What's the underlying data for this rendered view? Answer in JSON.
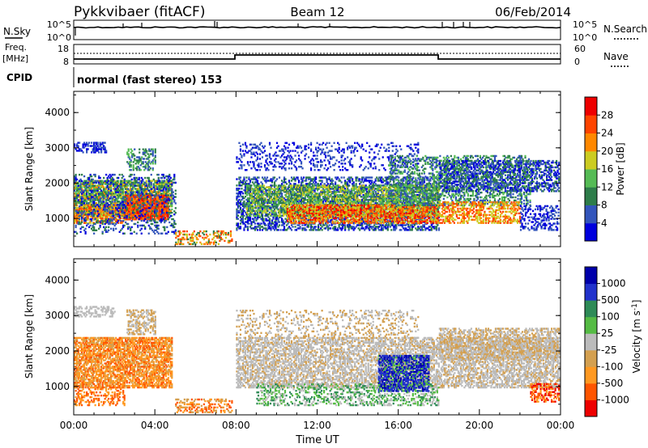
{
  "header": {
    "station": "Pykkvibaer (fitACF)",
    "beam": "Beam 12",
    "date": "06/Feb/2014"
  },
  "sky_panel": {
    "left_label": "N.Sky",
    "right_label": "N.Search",
    "left_ticks": [
      "10^5",
      "10^0"
    ],
    "right_ticks": [
      "10^5",
      "10^0"
    ]
  },
  "freq_panel": {
    "left_label_1": "Freq.",
    "left_label_2": "[MHz]",
    "right_label": "Nave",
    "left_ticks": [
      "18",
      "8"
    ],
    "right_ticks": [
      "60",
      "0"
    ]
  },
  "cpid": {
    "label": "CPID",
    "text": "normal (fast stereo) 153"
  },
  "colors": {
    "power_scale": [
      "#0000dd",
      "#3355bb",
      "#2e7d4a",
      "#55bb55",
      "#cccc22",
      "#ff8800",
      "#ff4400",
      "#ee0000"
    ],
    "velocity_scale": [
      "#ee0000",
      "#ff5500",
      "#ff9922",
      "#d4a050",
      "#bbbbbb",
      "#55bb44",
      "#2e8b57",
      "#2233cc",
      "#0000aa"
    ]
  },
  "chart_data": [
    {
      "type": "heatmap",
      "title": "",
      "ylabel": "Slant Range [km]",
      "xlabel": "",
      "ylim": [
        200,
        4600
      ],
      "y_ticks": [
        "1000",
        "2000",
        "3000",
        "4000"
      ],
      "x_ticks": [
        "00:00",
        "04:00",
        "08:00",
        "12:00",
        "16:00",
        "20:00",
        "00:00"
      ],
      "colorbar": {
        "label": "Power [dB]",
        "ticks": [
          "4",
          "8",
          "12",
          "16",
          "20",
          "24",
          "28"
        ]
      },
      "regions": [
        {
          "t0": 0.0,
          "t1": 4.8,
          "r0": 700,
          "r1": 2200,
          "value": "16-28 dB"
        },
        {
          "t0": 2.5,
          "t1": 4.0,
          "r0": 2500,
          "r1": 3100,
          "value": "8-16 dB"
        },
        {
          "t0": 5.0,
          "t1": 7.8,
          "r0": 300,
          "r1": 700,
          "value": "8-20 dB"
        },
        {
          "t0": 8.0,
          "t1": 18.0,
          "r0": 600,
          "r1": 2400,
          "value": "12-28 dB"
        },
        {
          "t0": 18.0,
          "t1": 23.9,
          "r0": 900,
          "r1": 2800,
          "value": "8-24 dB"
        }
      ]
    },
    {
      "type": "heatmap",
      "title": "",
      "ylabel": "Slant Range [km]",
      "xlabel": "Time UT",
      "ylim": [
        200,
        4600
      ],
      "y_ticks": [
        "1000",
        "2000",
        "3000",
        "4000"
      ],
      "x_ticks": [
        "00:00",
        "04:00",
        "08:00",
        "12:00",
        "16:00",
        "20:00",
        "00:00"
      ],
      "colorbar": {
        "label": "Velocity [m s^-1]",
        "ticks": [
          "1000",
          "500",
          "100",
          "25",
          "-25",
          "-100",
          "-500",
          "-1000"
        ]
      },
      "regions": [
        {
          "t0": 0.0,
          "t1": 4.8,
          "r0": 700,
          "r1": 2400,
          "value": "-100 to -500 m/s"
        },
        {
          "t0": 8.0,
          "t1": 23.9,
          "r0": 900,
          "r1": 2800,
          "value": "-25 to 25 m/s"
        },
        {
          "t0": 15.0,
          "t1": 17.5,
          "r0": 900,
          "r1": 1900,
          "value": "500 to 1000 m/s"
        }
      ]
    }
  ]
}
